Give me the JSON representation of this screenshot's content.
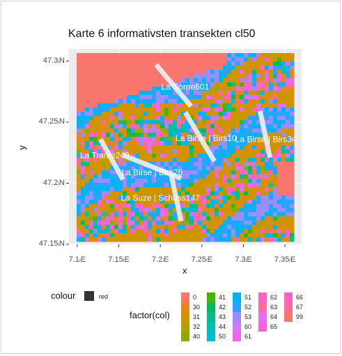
{
  "chart_data": {
    "type": "heatmap",
    "title": "Karte 6 informativsten transekten cl50",
    "xlabel": "x",
    "ylabel": "y",
    "x_ticks": [
      "7.1ᵢE",
      "7.15ᵢE",
      "7.2ᵢE",
      "7.25ᵢE",
      "7.3ᵢE",
      "7.35ᵢE"
    ],
    "x_tick_values": [
      7.1,
      7.15,
      7.2,
      7.25,
      7.3,
      7.35
    ],
    "y_ticks": [
      "47.3ᵢN",
      "47.25ᵢN",
      "47.2ᵢN",
      "47.15ᵢN"
    ],
    "y_tick_values": [
      47.3,
      47.25,
      47.2,
      47.15
    ],
    "xlim": [
      7.09,
      7.37
    ],
    "ylim": [
      47.15,
      47.31
    ],
    "grid": true,
    "background": "#ebebeb",
    "fill_legend": {
      "title": "factor(col)",
      "levels": [
        "0",
        "30",
        "31",
        "32",
        "40",
        "41",
        "42",
        "43",
        "44",
        "50",
        "51",
        "52",
        "53",
        "60",
        "61",
        "62",
        "63",
        "64",
        "65",
        "66",
        "67",
        "99"
      ],
      "colors": [
        "#F8766D",
        "#E7851E",
        "#D09400",
        "#B2A100",
        "#89AC00",
        "#45B500",
        "#00BC51",
        "#00C087",
        "#00C0B2",
        "#00BCD6",
        "#00B3F2",
        "#29A3FF",
        "#9C8DFF",
        "#D277FF",
        "#F166E8",
        "#FF61C7",
        "#FF6C9A",
        "#E76BF3",
        "#FA62DB",
        "#FF61C3",
        "#FF699C",
        "#F8766D"
      ]
    },
    "colour_legend": {
      "title": "colour",
      "entries": [
        "red"
      ],
      "swatch_color": "#333333"
    },
    "transects": [
      {
        "label": "La Sorne601",
        "start": [
          7.195,
          47.297
        ],
        "end": [
          7.237,
          47.263
        ],
        "label_at": [
          7.23,
          47.279
        ]
      },
      {
        "label": "La Birse | Birs10",
        "start": [
          7.23,
          47.258
        ],
        "end": [
          7.265,
          47.218
        ],
        "label_at": [
          7.255,
          47.237
        ]
      },
      {
        "label": "La Birse | Birs34",
        "start": [
          7.32,
          47.259
        ],
        "end": [
          7.332,
          47.221
        ],
        "label_at": [
          7.327,
          47.236
        ]
      },
      {
        "label": "La Trame249",
        "start": [
          7.128,
          47.236
        ],
        "end": [
          7.155,
          47.203
        ],
        "label_at": [
          7.133,
          47.223
        ]
      },
      {
        "label": "La Birse | Birs26",
        "start": [
          7.155,
          47.223
        ],
        "end": [
          7.225,
          47.204
        ],
        "label_at": [
          7.19,
          47.209
        ]
      },
      {
        "label": "La Suze | Schüss147",
        "start": [
          7.213,
          47.207
        ],
        "end": [
          7.225,
          47.169
        ],
        "label_at": [
          7.2,
          47.188
        ]
      }
    ]
  }
}
